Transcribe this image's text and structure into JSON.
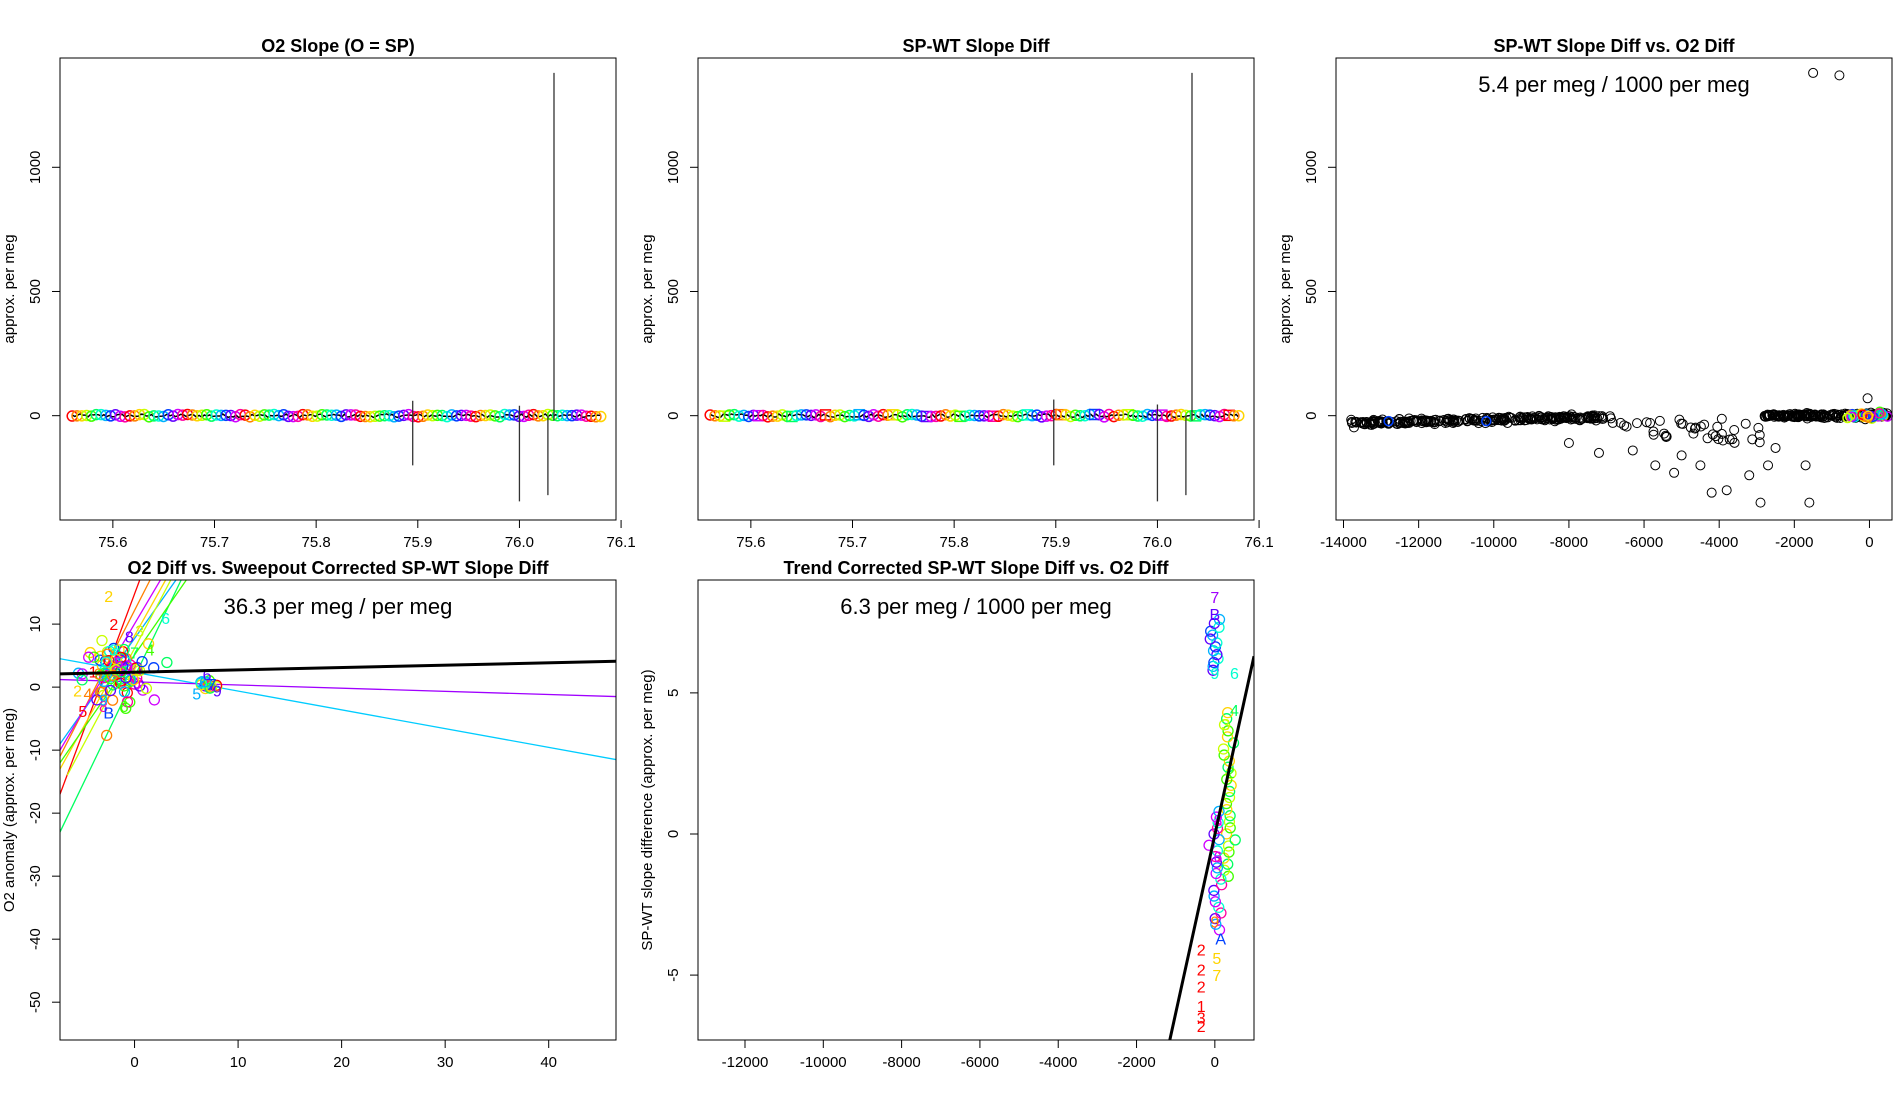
{
  "palette": [
    "#ff0000",
    "#ff8000",
    "#ffd400",
    "#c8ff00",
    "#40ff00",
    "#00ff60",
    "#00ffd0",
    "#00b0ff",
    "#0040ff",
    "#6000ff",
    "#d000ff",
    "#ff00a0"
  ],
  "chart_data": [
    {
      "id": "p1",
      "type": "line",
      "title": "O2 Slope (O = SP)",
      "xlabel": "",
      "ylabel": "approx. per meg",
      "xlim": [
        75.548,
        76.095
      ],
      "ylim": [
        -420,
        1440
      ],
      "xticks": [
        75.6,
        75.7,
        75.8,
        75.9,
        76.0,
        76.1
      ],
      "xtick_labels": [
        "75.6",
        "75.7",
        "75.8",
        "75.9",
        "76.0",
        "76.1"
      ],
      "yticks": [
        0,
        500,
        1000
      ],
      "ytick_labels": [
        "0",
        "500",
        "1000"
      ],
      "series_range": [
        75.56,
        76.08
      ],
      "spikes": [
        {
          "x": 75.895,
          "y": [
            -200,
            60
          ]
        },
        {
          "x": 76.0,
          "y": [
            -345,
            40
          ]
        },
        {
          "x": 76.028,
          "y": [
            -320,
            0
          ]
        },
        {
          "x": 76.034,
          "y": [
            -20,
            1380
          ]
        }
      ]
    },
    {
      "id": "p2",
      "type": "line",
      "title": "SP-WT Slope Diff",
      "xlabel": "",
      "ylabel": "approx. per meg",
      "xlim": [
        75.548,
        76.095
      ],
      "ylim": [
        -420,
        1440
      ],
      "xticks": [
        75.6,
        75.7,
        75.8,
        75.9,
        76.0,
        76.1
      ],
      "xtick_labels": [
        "75.6",
        "75.7",
        "75.8",
        "75.9",
        "76.0",
        "76.1"
      ],
      "yticks": [
        0,
        500,
        1000
      ],
      "ytick_labels": [
        "0",
        "500",
        "1000"
      ],
      "series_range": [
        75.56,
        76.08
      ],
      "spikes": [
        {
          "x": 75.898,
          "y": [
            -200,
            65
          ]
        },
        {
          "x": 76.0,
          "y": [
            -345,
            45
          ]
        },
        {
          "x": 76.028,
          "y": [
            -320,
            0
          ]
        },
        {
          "x": 76.034,
          "y": [
            -20,
            1380
          ]
        }
      ]
    },
    {
      "id": "p3",
      "type": "scatter",
      "title": "SP-WT Slope Diff vs. O2 Diff",
      "annotation": "5.4 per meg / 1000 per meg",
      "xlabel": "",
      "ylabel": "approx. per meg",
      "xlim": [
        -14200,
        600
      ],
      "ylim": [
        -420,
        1440
      ],
      "xticks": [
        -14000,
        -12000,
        -10000,
        -8000,
        -6000,
        -4000,
        -2000,
        0
      ],
      "xtick_labels": [
        "-14000",
        "-12000",
        "-10000",
        "-8000",
        "-6000",
        "-4000",
        "-2000",
        "0"
      ],
      "yticks": [
        0,
        500,
        1000
      ],
      "ytick_labels": [
        "0",
        "500",
        "1000"
      ],
      "outliers": [
        [
          -1500,
          1380
        ],
        [
          -800,
          1370
        ],
        [
          -1600,
          -350
        ],
        [
          -2900,
          -350
        ],
        [
          -1700,
          -200
        ],
        [
          -2700,
          -200
        ],
        [
          -3800,
          -300
        ],
        [
          -4200,
          -310
        ],
        [
          -3200,
          -240
        ],
        [
          -4500,
          -200
        ],
        [
          -2500,
          -130
        ],
        [
          -3900,
          -100
        ],
        [
          -5200,
          -230
        ],
        [
          -5000,
          -160
        ],
        [
          -5700,
          -200
        ],
        [
          -6300,
          -140
        ],
        [
          -7200,
          -150
        ],
        [
          -8000,
          -110
        ],
        [
          -50,
          70
        ]
      ],
      "dense_left": [
        -13800,
        -6900
      ],
      "dense_right": [
        -2800,
        500
      ]
    },
    {
      "id": "p4",
      "type": "scatter",
      "title": "O2 Diff vs. Sweepout Corrected SP-WT Slope Diff",
      "annotation": "36.3 per meg / per meg",
      "xlabel": "",
      "ylabel": "O2 anomaly (approx. per meg)",
      "xlim": [
        -7.2,
        46.5
      ],
      "ylim": [
        -56,
        17
      ],
      "xticks": [
        0,
        10,
        20,
        30,
        40
      ],
      "xtick_labels": [
        "0",
        "10",
        "20",
        "30",
        "40"
      ],
      "yticks": [
        -50,
        -40,
        -30,
        -20,
        -10,
        0,
        10
      ],
      "ytick_labels": [
        "-50",
        "-40",
        "-30",
        "-20",
        "-10",
        "0",
        "10"
      ],
      "fit_line": [
        [
          -7.2,
          2.1
        ],
        [
          46.5,
          4.1
        ]
      ],
      "thin_lines": [
        {
          "color": "#00ccff",
          "pts": [
            [
              -7.2,
              4.5
            ],
            [
              46.5,
              -11.5
            ]
          ]
        },
        {
          "color": "#a000ff",
          "pts": [
            [
              -7.2,
              1.2
            ],
            [
              46.5,
              -1.5
            ]
          ]
        },
        {
          "color": "#00ff60",
          "pts": [
            [
              -7.2,
              -23
            ],
            [
              4.5,
              17
            ]
          ]
        },
        {
          "color": "#ff0000",
          "pts": [
            [
              -7.2,
              -17
            ],
            [
              0.5,
              17
            ]
          ]
        },
        {
          "color": "#ffd400",
          "pts": [
            [
              -7.2,
              -13
            ],
            [
              3.0,
              17
            ]
          ]
        },
        {
          "color": "#00b0ff",
          "pts": [
            [
              -7.2,
              -9
            ],
            [
              4.0,
              17
            ]
          ]
        },
        {
          "color": "#ff8000",
          "pts": [
            [
              -7.2,
              -11
            ],
            [
              1.5,
              17
            ]
          ]
        },
        {
          "color": "#40ff00",
          "pts": [
            [
              -7.2,
              -12
            ],
            [
              5.0,
              17
            ]
          ]
        },
        {
          "color": "#d000ff",
          "pts": [
            [
              -7.2,
              -10
            ],
            [
              2.5,
              17
            ]
          ]
        },
        {
          "color": "#c8ff00",
          "pts": [
            [
              -6.5,
              -14
            ],
            [
              3.5,
              17
            ]
          ]
        }
      ],
      "labels": [
        {
          "t": "2",
          "x": -2.5,
          "y": 14.5,
          "c": "#ffd400"
        },
        {
          "t": "2",
          "x": -2.0,
          "y": 10,
          "c": "#ff0000"
        },
        {
          "t": "1",
          "x": -4.0,
          "y": 2.5,
          "c": "#ff0000"
        },
        {
          "t": "9",
          "x": -3.5,
          "y": 2.2,
          "c": "#ff8000"
        },
        {
          "t": "5",
          "x": -5.0,
          "y": -3.8,
          "c": "#ff0000"
        },
        {
          "t": "8",
          "x": -3.0,
          "y": -3.0,
          "c": "#ff00a0"
        },
        {
          "t": "B",
          "x": -2.5,
          "y": -4.0,
          "c": "#0040ff"
        },
        {
          "t": "9",
          "x": -3.0,
          "y": -2.0,
          "c": "#00b0ff"
        },
        {
          "t": "4",
          "x": -4.5,
          "y": -1.0,
          "c": "#ff8000"
        },
        {
          "t": "2",
          "x": -5.5,
          "y": -0.5,
          "c": "#ffd400"
        },
        {
          "t": "3",
          "x": -2.0,
          "y": 6.0,
          "c": "#00ffd0"
        },
        {
          "t": "5",
          "x": -1.5,
          "y": 4.0,
          "c": "#d000ff"
        },
        {
          "t": "8",
          "x": -0.5,
          "y": 8.0,
          "c": "#6000ff"
        },
        {
          "t": "6",
          "x": 3.0,
          "y": 11.0,
          "c": "#00ffd0"
        },
        {
          "t": "4",
          "x": 1.5,
          "y": 6.0,
          "c": "#40ff00"
        },
        {
          "t": "3",
          "x": 0.5,
          "y": 9.0,
          "c": "#c8ff00"
        },
        {
          "t": "7",
          "x": 0.0,
          "y": 5.5,
          "c": "#00ff60"
        },
        {
          "t": "6",
          "x": -1.0,
          "y": -3.0,
          "c": "#40ff00"
        },
        {
          "t": "2",
          "x": 6.5,
          "y": 1.0,
          "c": "#00b0ff"
        },
        {
          "t": "6",
          "x": 7.0,
          "y": 2.0,
          "c": "#6000ff"
        },
        {
          "t": "7",
          "x": 7.5,
          "y": 0.5,
          "c": "#0040ff"
        },
        {
          "t": "5",
          "x": 6.0,
          "y": -1.0,
          "c": "#00b0ff"
        },
        {
          "t": "9",
          "x": 8.0,
          "y": -0.5,
          "c": "#6000ff"
        }
      ],
      "clusters": [
        {
          "cx": -1.8,
          "cy": 2.0,
          "sx": 2.6,
          "sy": 4.0,
          "n": 90
        },
        {
          "cx": 7.0,
          "cy": 0.3,
          "sx": 0.9,
          "sy": 0.9,
          "n": 20
        }
      ]
    },
    {
      "id": "p5",
      "type": "scatter",
      "title": "Trend Corrected SP-WT Slope Diff vs. O2 Diff",
      "annotation": "6.3 per meg / 1000 per meg",
      "xlabel": "",
      "ylabel": "SP-WT slope difference (approx. per meg)",
      "xlim": [
        -13200,
        1000
      ],
      "ylim": [
        -7.3,
        9.0
      ],
      "xticks": [
        -12000,
        -10000,
        -8000,
        -6000,
        -4000,
        -2000,
        0
      ],
      "xtick_labels": [
        "-12000",
        "-10000",
        "-8000",
        "-6000",
        "-4000",
        "-2000",
        "0"
      ],
      "yticks": [
        -5,
        0,
        5
      ],
      "ytick_labels": [
        "-5",
        "0",
        "5"
      ],
      "fit_line": [
        [
          -1150,
          -7.3
        ],
        [
          1000,
          6.3
        ]
      ],
      "labels": [
        {
          "t": "7",
          "x": 0,
          "y": 8.4,
          "c": "#a000ff"
        },
        {
          "t": "B",
          "x": 0,
          "y": 7.8,
          "c": "#6000ff"
        },
        {
          "t": "6",
          "x": 500,
          "y": 5.7,
          "c": "#00ffd0"
        },
        {
          "t": "9",
          "x": 0,
          "y": 5.7,
          "c": "#00ffd0"
        },
        {
          "t": "4",
          "x": 500,
          "y": 4.4,
          "c": "#00ff60"
        },
        {
          "t": "3",
          "x": 280,
          "y": 3.9,
          "c": "#c8ff00"
        },
        {
          "t": "2",
          "x": 400,
          "y": 2.2,
          "c": "#40ff00"
        },
        {
          "t": "8",
          "x": 80,
          "y": 0.5,
          "c": "#d000ff"
        },
        {
          "t": "6",
          "x": 80,
          "y": -0.8,
          "c": "#d000ff"
        },
        {
          "t": "9",
          "x": 0,
          "y": -3.1,
          "c": "#ff8000"
        },
        {
          "t": "A",
          "x": 150,
          "y": -3.7,
          "c": "#0040ff"
        },
        {
          "t": "2",
          "x": -350,
          "y": -4.1,
          "c": "#ff0000"
        },
        {
          "t": "5",
          "x": 50,
          "y": -4.4,
          "c": "#ffd400"
        },
        {
          "t": "2",
          "x": -350,
          "y": -4.8,
          "c": "#ff0000"
        },
        {
          "t": "7",
          "x": 50,
          "y": -5.0,
          "c": "#ffd400"
        },
        {
          "t": "2",
          "x": -350,
          "y": -5.4,
          "c": "#ff0000"
        },
        {
          "t": "1",
          "x": -350,
          "y": -6.1,
          "c": "#ff0000"
        },
        {
          "t": "3",
          "x": -350,
          "y": -6.5,
          "c": "#ff0000"
        },
        {
          "t": "2",
          "x": -350,
          "y": -6.8,
          "c": "#ff0000"
        }
      ],
      "columns": [
        {
          "x": 20,
          "y0": 5.8,
          "y1": 7.6,
          "n": 14,
          "colors": [
            "#6000ff",
            "#00b0ff",
            "#0040ff",
            "#00ffd0"
          ]
        },
        {
          "x": 350,
          "y0": -1.5,
          "y1": 4.3,
          "n": 28,
          "colors": [
            "#40ff00",
            "#c8ff00",
            "#00ff60",
            "#ffd400"
          ]
        },
        {
          "x": 80,
          "y0": -3.4,
          "y1": 0.8,
          "n": 22,
          "colors": [
            "#d000ff",
            "#00b0ff",
            "#6000ff",
            "#ff00a0",
            "#00ffd0"
          ]
        }
      ]
    }
  ]
}
